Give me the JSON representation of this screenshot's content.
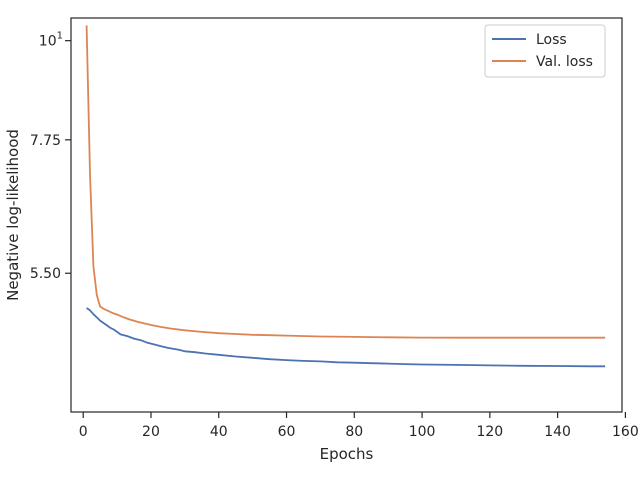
{
  "chart_data": {
    "type": "line",
    "xlabel": "Epochs",
    "ylabel": "Negative log-likelihood",
    "xlim": [
      -3.6,
      159
    ],
    "ylim": [
      3.85,
      10.6
    ],
    "yscale": "log",
    "grid": false,
    "legend_position": "top-right",
    "x_ticks": [
      {
        "value": 0,
        "label": "0"
      },
      {
        "value": 20,
        "label": "20"
      },
      {
        "value": 40,
        "label": "40"
      },
      {
        "value": 60,
        "label": "60"
      },
      {
        "value": 80,
        "label": "80"
      },
      {
        "value": 100,
        "label": "100"
      },
      {
        "value": 120,
        "label": "120"
      },
      {
        "value": 140,
        "label": "140"
      },
      {
        "value": 160,
        "label": "160"
      }
    ],
    "y_ticks": [
      {
        "value": 10,
        "label": "10",
        "sup": "1"
      },
      {
        "value": 7.75,
        "label": "7.75"
      },
      {
        "value": 5.5,
        "label": "5.50"
      }
    ],
    "series": [
      {
        "name": "Loss",
        "color": "#4c72b0",
        "points": [
          [
            1,
            5.03
          ],
          [
            2,
            5.0
          ],
          [
            3,
            4.95
          ],
          [
            4,
            4.91
          ],
          [
            5,
            4.87
          ],
          [
            6,
            4.84
          ],
          [
            7,
            4.81
          ],
          [
            8,
            4.78
          ],
          [
            9,
            4.76
          ],
          [
            10,
            4.73
          ],
          [
            11,
            4.7
          ],
          [
            13,
            4.68
          ],
          [
            15,
            4.65
          ],
          [
            17,
            4.63
          ],
          [
            19,
            4.6
          ],
          [
            21,
            4.58
          ],
          [
            23,
            4.56
          ],
          [
            25,
            4.54
          ],
          [
            28,
            4.52
          ],
          [
            30,
            4.5
          ],
          [
            33,
            4.49
          ],
          [
            36,
            4.475
          ],
          [
            40,
            4.46
          ],
          [
            45,
            4.44
          ],
          [
            50,
            4.425
          ],
          [
            55,
            4.41
          ],
          [
            60,
            4.4
          ],
          [
            65,
            4.39
          ],
          [
            70,
            4.385
          ],
          [
            75,
            4.375
          ],
          [
            80,
            4.37
          ],
          [
            85,
            4.365
          ],
          [
            90,
            4.36
          ],
          [
            95,
            4.355
          ],
          [
            100,
            4.35
          ],
          [
            110,
            4.345
          ],
          [
            120,
            4.34
          ],
          [
            130,
            4.335
          ],
          [
            140,
            4.333
          ],
          [
            150,
            4.33
          ],
          [
            154,
            4.33
          ]
        ]
      },
      {
        "name": "Val. loss",
        "color": "#dd8452",
        "points": [
          [
            1,
            10.4
          ],
          [
            2,
            7.1
          ],
          [
            3,
            5.6
          ],
          [
            4,
            5.2
          ],
          [
            5,
            5.05
          ],
          [
            6,
            5.02
          ],
          [
            7,
            5.0
          ],
          [
            8,
            4.98
          ],
          [
            9,
            4.96
          ],
          [
            10,
            4.945
          ],
          [
            12,
            4.91
          ],
          [
            14,
            4.88
          ],
          [
            16,
            4.855
          ],
          [
            18,
            4.835
          ],
          [
            20,
            4.815
          ],
          [
            23,
            4.79
          ],
          [
            26,
            4.77
          ],
          [
            30,
            4.75
          ],
          [
            35,
            4.73
          ],
          [
            40,
            4.715
          ],
          [
            45,
            4.705
          ],
          [
            50,
            4.695
          ],
          [
            55,
            4.69
          ],
          [
            60,
            4.685
          ],
          [
            70,
            4.675
          ],
          [
            80,
            4.67
          ],
          [
            90,
            4.665
          ],
          [
            100,
            4.662
          ],
          [
            110,
            4.66
          ],
          [
            120,
            4.66
          ],
          [
            130,
            4.66
          ],
          [
            140,
            4.66
          ],
          [
            150,
            4.66
          ],
          [
            154,
            4.66
          ]
        ]
      }
    ]
  }
}
